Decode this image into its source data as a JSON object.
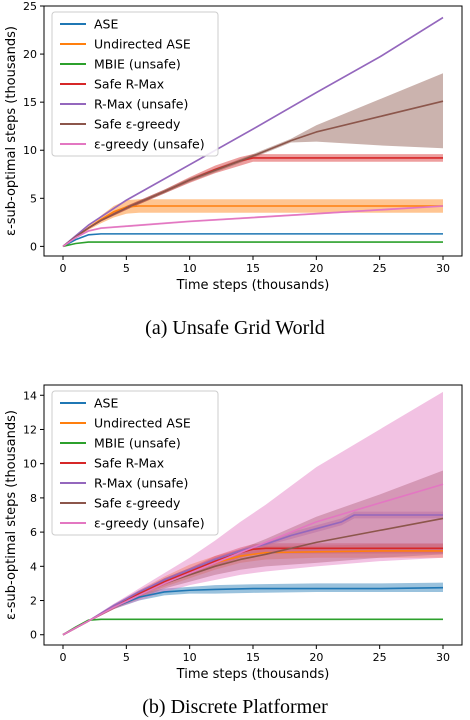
{
  "series_names": [
    "ASE",
    "Undirected ASE",
    "MBIE (unsafe)",
    "Safe R-Max",
    "R-Max (unsafe)",
    "Safe ε-greedy",
    "ε-greedy (unsafe)"
  ],
  "series_colors": [
    "#1f77b4",
    "#ff7f0e",
    "#2ca02c",
    "#d62728",
    "#9467bd",
    "#8c564b",
    "#e377c2"
  ],
  "chart_data": [
    {
      "type": "line",
      "caption": "(a) Unsafe Grid World",
      "xlabel": "Time steps (thousands)",
      "ylabel": "ε-sub-optimal steps (thousands)",
      "xlim": [
        -1.5,
        31.5
      ],
      "ylim": [
        -1.0,
        25.0
      ],
      "xticks": [
        0,
        5,
        10,
        15,
        20,
        25,
        30
      ],
      "yticks": [
        0,
        5,
        10,
        15,
        20,
        25
      ],
      "grid": false,
      "legend_position": "top-left",
      "series": [
        {
          "x": [
            0,
            1,
            2,
            3,
            5,
            10,
            15,
            20,
            25,
            30
          ],
          "y": [
            0,
            0.7,
            1.2,
            1.3,
            1.3,
            1.3,
            1.3,
            1.3,
            1.3,
            1.3
          ],
          "lower": [
            0,
            0.65,
            1.15,
            1.25,
            1.25,
            1.25,
            1.25,
            1.25,
            1.25,
            1.25
          ],
          "upper": [
            0,
            0.75,
            1.25,
            1.35,
            1.35,
            1.35,
            1.35,
            1.35,
            1.35,
            1.35
          ]
        },
        {
          "x": [
            0,
            1,
            2,
            3,
            4,
            5,
            6,
            8,
            10,
            15,
            20,
            25,
            30
          ],
          "y": [
            0,
            1.0,
            1.9,
            2.8,
            3.6,
            4.1,
            4.2,
            4.2,
            4.2,
            4.2,
            4.2,
            4.2,
            4.2
          ],
          "lower": [
            0,
            0.9,
            1.7,
            2.4,
            3.0,
            3.4,
            3.5,
            3.5,
            3.5,
            3.5,
            3.5,
            3.5,
            3.5
          ],
          "upper": [
            0,
            1.1,
            2.1,
            3.2,
            4.2,
            4.8,
            4.9,
            4.9,
            4.9,
            4.9,
            4.9,
            4.9,
            4.9
          ]
        },
        {
          "x": [
            0,
            1,
            2,
            3,
            5,
            10,
            15,
            20,
            25,
            30
          ],
          "y": [
            0,
            0.3,
            0.45,
            0.45,
            0.45,
            0.45,
            0.45,
            0.45,
            0.45,
            0.45
          ],
          "lower": [
            0,
            0.28,
            0.42,
            0.42,
            0.42,
            0.42,
            0.42,
            0.42,
            0.42,
            0.42
          ],
          "upper": [
            0,
            0.32,
            0.48,
            0.48,
            0.48,
            0.48,
            0.48,
            0.48,
            0.48,
            0.48
          ]
        },
        {
          "x": [
            0,
            1,
            2,
            3,
            5,
            8,
            10,
            12,
            14,
            15,
            20,
            25,
            30
          ],
          "y": [
            0,
            1.0,
            1.9,
            2.7,
            4.0,
            5.7,
            6.9,
            8.0,
            8.9,
            9.2,
            9.2,
            9.2,
            9.2
          ],
          "lower": [
            0,
            0.95,
            1.8,
            2.6,
            3.8,
            5.5,
            6.6,
            7.6,
            8.4,
            8.8,
            8.8,
            8.8,
            8.8
          ],
          "upper": [
            0,
            1.05,
            2.0,
            2.8,
            4.2,
            5.9,
            7.2,
            8.4,
            9.3,
            9.6,
            9.6,
            9.6,
            9.6
          ]
        },
        {
          "x": [
            0,
            2,
            5,
            10,
            15,
            20,
            25,
            30
          ],
          "y": [
            0,
            2.2,
            4.8,
            8.5,
            12.2,
            16.0,
            19.7,
            23.8
          ],
          "lower": [
            0,
            2.15,
            4.7,
            8.4,
            12.1,
            15.9,
            19.6,
            23.7
          ],
          "upper": [
            0,
            2.25,
            4.9,
            8.6,
            12.3,
            16.1,
            19.8,
            23.9
          ]
        },
        {
          "x": [
            0,
            1,
            2,
            3,
            5,
            8,
            10,
            12,
            15,
            18,
            20,
            25,
            30
          ],
          "y": [
            0,
            1.0,
            1.9,
            2.7,
            4.0,
            5.7,
            6.9,
            7.9,
            9.4,
            11.0,
            11.9,
            13.5,
            15.1
          ],
          "lower": [
            0,
            0.95,
            1.8,
            2.6,
            3.8,
            5.5,
            6.7,
            7.7,
            9.2,
            10.8,
            10.9,
            10.5,
            10.2
          ],
          "upper": [
            0,
            1.05,
            2.0,
            2.8,
            4.2,
            5.9,
            7.1,
            8.1,
            9.6,
            11.2,
            12.6,
            15.3,
            18.0
          ]
        },
        {
          "x": [
            0,
            1,
            2,
            3,
            5,
            10,
            15,
            20,
            25,
            30
          ],
          "y": [
            0,
            0.9,
            1.6,
            1.9,
            2.1,
            2.6,
            3.0,
            3.4,
            3.8,
            4.2
          ],
          "lower": [
            0,
            0.85,
            1.5,
            1.8,
            2.0,
            2.5,
            2.9,
            3.3,
            3.7,
            4.1
          ],
          "upper": [
            0,
            0.95,
            1.7,
            2.0,
            2.2,
            2.7,
            3.1,
            3.5,
            3.9,
            4.3
          ]
        }
      ]
    },
    {
      "type": "line",
      "caption": "(b) Discrete Platformer",
      "xlabel": "Time steps (thousands)",
      "ylabel": "ε-sub-optimal steps (thousands)",
      "xlim": [
        -1.5,
        31.5
      ],
      "ylim": [
        -0.6,
        14.6
      ],
      "xticks": [
        0,
        5,
        10,
        15,
        20,
        25,
        30
      ],
      "yticks": [
        0,
        2,
        4,
        6,
        8,
        10,
        12,
        14
      ],
      "grid": false,
      "legend_position": "top-left",
      "series": [
        {
          "x": [
            0,
            2,
            4,
            6,
            8,
            10,
            12,
            15,
            20,
            25,
            30
          ],
          "y": [
            0,
            0.8,
            1.6,
            2.2,
            2.5,
            2.6,
            2.65,
            2.7,
            2.7,
            2.7,
            2.75
          ],
          "lower": [
            0,
            0.75,
            1.5,
            2.0,
            2.3,
            2.4,
            2.4,
            2.45,
            2.5,
            2.5,
            2.5
          ],
          "upper": [
            0,
            0.85,
            1.7,
            2.4,
            2.7,
            2.8,
            2.9,
            2.95,
            3.0,
            3.0,
            3.05
          ]
        },
        {
          "x": [
            0,
            2,
            4,
            6,
            8,
            10,
            12,
            14,
            16,
            20,
            25,
            30
          ],
          "y": [
            0,
            0.8,
            1.6,
            2.4,
            3.1,
            3.7,
            4.2,
            4.6,
            4.8,
            4.85,
            4.9,
            4.9
          ],
          "lower": [
            0,
            0.75,
            1.5,
            2.2,
            2.8,
            3.3,
            3.8,
            4.2,
            4.4,
            4.5,
            4.5,
            4.5
          ],
          "upper": [
            0,
            0.85,
            1.7,
            2.6,
            3.4,
            4.1,
            4.6,
            5.0,
            5.2,
            5.2,
            5.3,
            5.3
          ]
        },
        {
          "x": [
            0,
            1,
            2,
            3,
            5,
            10,
            15,
            20,
            25,
            30
          ],
          "y": [
            0,
            0.45,
            0.85,
            0.9,
            0.9,
            0.9,
            0.9,
            0.9,
            0.9,
            0.9
          ],
          "lower": [
            0,
            0.43,
            0.83,
            0.88,
            0.88,
            0.88,
            0.88,
            0.88,
            0.88,
            0.88
          ],
          "upper": [
            0,
            0.47,
            0.87,
            0.92,
            0.92,
            0.92,
            0.92,
            0.92,
            0.92,
            0.92
          ]
        },
        {
          "x": [
            0,
            2,
            4,
            6,
            8,
            10,
            12,
            14,
            15,
            16,
            20,
            25,
            30
          ],
          "y": [
            0,
            0.8,
            1.6,
            2.4,
            3.1,
            3.7,
            4.3,
            4.8,
            5.0,
            5.05,
            5.05,
            5.05,
            5.05
          ],
          "lower": [
            0,
            0.75,
            1.5,
            2.3,
            2.9,
            3.5,
            4.0,
            4.5,
            4.7,
            4.75,
            4.75,
            4.75,
            4.75
          ],
          "upper": [
            0,
            0.85,
            1.7,
            2.5,
            3.3,
            3.9,
            4.6,
            5.1,
            5.3,
            5.35,
            5.35,
            5.35,
            5.35
          ]
        },
        {
          "x": [
            0,
            2,
            4,
            6,
            8,
            10,
            12,
            14,
            16,
            18,
            20,
            22,
            23,
            25,
            30
          ],
          "y": [
            0,
            0.8,
            1.7,
            2.5,
            3.2,
            3.8,
            4.4,
            4.9,
            5.3,
            5.8,
            6.2,
            6.6,
            7.0,
            7.0,
            7.0
          ],
          "lower": [
            0,
            0.75,
            1.6,
            2.4,
            3.1,
            3.7,
            4.3,
            4.8,
            5.2,
            5.6,
            6.0,
            6.4,
            6.8,
            6.8,
            6.8
          ],
          "upper": [
            0,
            0.85,
            1.8,
            2.6,
            3.3,
            3.9,
            4.5,
            5.0,
            5.4,
            6.0,
            6.4,
            6.8,
            7.2,
            7.2,
            7.2
          ]
        },
        {
          "x": [
            0,
            2,
            4,
            6,
            8,
            10,
            12,
            14,
            16,
            20,
            25,
            30
          ],
          "y": [
            0,
            0.8,
            1.6,
            2.3,
            3.0,
            3.5,
            4.0,
            4.4,
            4.7,
            5.4,
            6.1,
            6.8
          ],
          "lower": [
            0,
            0.75,
            1.5,
            2.1,
            2.7,
            3.1,
            3.5,
            3.8,
            4.0,
            4.2,
            4.5,
            4.7
          ],
          "upper": [
            0,
            0.85,
            1.7,
            2.5,
            3.3,
            3.9,
            4.5,
            5.0,
            5.6,
            6.9,
            8.2,
            9.6
          ]
        },
        {
          "x": [
            0,
            2,
            4,
            6,
            8,
            10,
            12,
            14,
            16,
            20,
            25,
            30
          ],
          "y": [
            0,
            0.8,
            1.6,
            2.3,
            3.0,
            3.6,
            4.2,
            4.8,
            5.4,
            6.6,
            7.7,
            8.8
          ],
          "lower": [
            0,
            0.75,
            1.5,
            2.0,
            2.5,
            2.9,
            3.2,
            3.5,
            3.7,
            4.0,
            4.3,
            4.5
          ],
          "upper": [
            0,
            0.85,
            1.8,
            2.7,
            3.6,
            4.5,
            5.5,
            6.6,
            7.6,
            9.8,
            12.0,
            14.2
          ]
        }
      ]
    }
  ]
}
